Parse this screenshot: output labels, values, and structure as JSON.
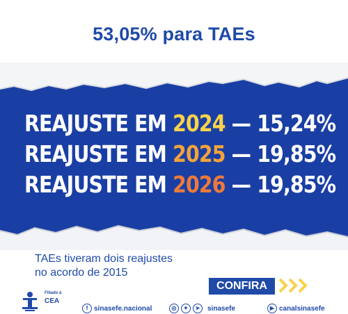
{
  "headline": "53,05% para TAEs",
  "reajustes": [
    {
      "prefix": "REAJUSTE EM ",
      "year": "2024",
      "sep": " — ",
      "pct": "15,24%",
      "color": "#f8d24a"
    },
    {
      "prefix": "REAJUSTE EM ",
      "year": "2025",
      "sep": " — ",
      "pct": "19,85%",
      "color": "#f2a33a"
    },
    {
      "prefix": "REAJUSTE EM ",
      "year": "2026",
      "sep": " — ",
      "pct": "19,85%",
      "color": "#ec7a3b"
    }
  ],
  "note_line1": "TAEs tiveram dois reajustes",
  "note_line2": "no acordo de 2015",
  "cta_label": "CONFIRA",
  "affiliation_label": "Filiado à",
  "affiliation_org": "CEA",
  "social": {
    "facebook": "sinasefe.nacional",
    "handle": "sinasefe",
    "youtube": "canalsinasefe"
  },
  "colors": {
    "brand_blue": "#1f4aa8",
    "band_blue": "#1a3fa4",
    "cta_chevron": "#f8d24a"
  }
}
